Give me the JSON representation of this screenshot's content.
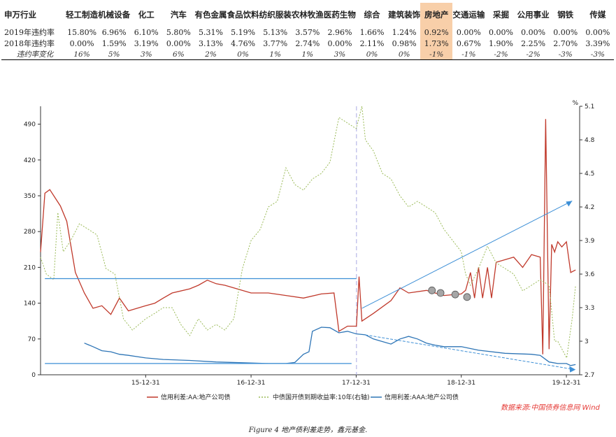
{
  "table": {
    "header_label": "申万行业",
    "industries": [
      "轻工制造",
      "机械设备",
      "化工",
      "汽车",
      "有色金属",
      "食品饮料",
      "纺织服装",
      "农林牧渔",
      "医药生物",
      "综合",
      "建筑装饰",
      "房地产",
      "交通运输",
      "采掘",
      "公用事业",
      "钢铁",
      "传媒"
    ],
    "highlight_industry": "房地产",
    "rows": [
      {
        "label": "2019年违约率",
        "values": [
          "15.80%",
          "6.96%",
          "6.10%",
          "5.80%",
          "5.31%",
          "5.19%",
          "5.13%",
          "3.57%",
          "2.96%",
          "1.66%",
          "1.24%",
          "0.92%",
          "0.00%",
          "0.00%",
          "0.00%",
          "0.00%",
          "0.00%"
        ]
      },
      {
        "label": "2018年违约率",
        "values": [
          "0.00%",
          "1.59%",
          "3.19%",
          "0.00%",
          "3.13%",
          "4.76%",
          "3.77%",
          "2.74%",
          "0.00%",
          "2.11%",
          "0.98%",
          "1.73%",
          "0.67%",
          "1.90%",
          "2.25%",
          "2.70%",
          "3.39%"
        ]
      },
      {
        "label": "违约率变化",
        "values": [
          "16%",
          "5%",
          "3%",
          "6%",
          "2%",
          "0%",
          "1%",
          "1%",
          "3%",
          "0%",
          "0%",
          "-1%",
          "-1%",
          "-2%",
          "-2%",
          "-3%",
          "-3%"
        ]
      }
    ]
  },
  "chart_data": {
    "type": "line",
    "x": [
      "2015-12-31",
      "2016-12-31",
      "2017-12-31",
      "2018-12-31",
      "2019-12-31"
    ],
    "x_ticklabels": [
      "15-12-31",
      "16-12-31",
      "17-12-31",
      "18-12-31",
      "19-12-31"
    ],
    "y_left": {
      "lim": [
        0,
        525
      ],
      "ticks": [
        0,
        70,
        140,
        210,
        280,
        350,
        420,
        490
      ]
    },
    "y_right": {
      "unit": "%",
      "lim": [
        2.7,
        5.1
      ],
      "ticks": [
        2.7,
        3.0,
        3.3,
        3.6,
        3.9,
        4.2,
        4.5,
        4.8,
        5.1
      ]
    },
    "series": [
      {
        "name": "信用利差:AA:地产公司债",
        "axis": "left",
        "color": "#c0392b",
        "style": "solid",
        "points": [
          [
            "2014-12-31",
            240
          ],
          [
            "2015-01-15",
            355
          ],
          [
            "2015-02-01",
            362
          ],
          [
            "2015-03-10",
            330
          ],
          [
            "2015-04-01",
            300
          ],
          [
            "2015-05-01",
            200
          ],
          [
            "2015-06-01",
            160
          ],
          [
            "2015-07-01",
            130
          ],
          [
            "2015-08-01",
            135
          ],
          [
            "2015-09-01",
            118
          ],
          [
            "2015-10-01",
            150
          ],
          [
            "2015-11-01",
            125
          ],
          [
            "2015-12-31",
            135
          ],
          [
            "2016-02-01",
            140
          ],
          [
            "2016-03-01",
            150
          ],
          [
            "2016-04-01",
            160
          ],
          [
            "2016-06-01",
            168
          ],
          [
            "2016-07-01",
            175
          ],
          [
            "2016-08-01",
            185
          ],
          [
            "2016-09-01",
            178
          ],
          [
            "2016-10-01",
            175
          ],
          [
            "2016-11-01",
            170
          ],
          [
            "2016-12-31",
            160
          ],
          [
            "2017-03-01",
            160
          ],
          [
            "2017-05-01",
            155
          ],
          [
            "2017-07-01",
            150
          ],
          [
            "2017-09-01",
            158
          ],
          [
            "2017-10-15",
            160
          ],
          [
            "2017-11-01",
            85
          ],
          [
            "2017-12-01",
            95
          ],
          [
            "2018-01-01",
            95
          ],
          [
            "2018-01-10",
            192
          ],
          [
            "2018-01-20",
            105
          ],
          [
            "2018-03-01",
            120
          ],
          [
            "2018-05-01",
            145
          ],
          [
            "2018-06-01",
            170
          ],
          [
            "2018-07-01",
            160
          ],
          [
            "2018-09-01",
            165
          ],
          [
            "2018-10-01",
            160
          ],
          [
            "2018-11-01",
            155
          ],
          [
            "2018-12-31",
            158
          ],
          [
            "2019-01-15",
            165
          ],
          [
            "2019-02-01",
            200
          ],
          [
            "2019-02-15",
            150
          ],
          [
            "2019-03-01",
            210
          ],
          [
            "2019-03-15",
            150
          ],
          [
            "2019-04-01",
            210
          ],
          [
            "2019-04-15",
            150
          ],
          [
            "2019-05-01",
            220
          ],
          [
            "2019-07-01",
            230
          ],
          [
            "2019-08-01",
            210
          ],
          [
            "2019-09-01",
            235
          ],
          [
            "2019-10-01",
            230
          ],
          [
            "2019-10-10",
            40
          ],
          [
            "2019-10-20",
            500
          ],
          [
            "2019-11-01",
            50
          ],
          [
            "2019-11-10",
            255
          ],
          [
            "2019-11-20",
            240
          ],
          [
            "2019-12-01",
            260
          ],
          [
            "2019-12-15",
            250
          ],
          [
            "2019-12-31",
            260
          ],
          [
            "2020-01-15",
            200
          ],
          [
            "2020-02-01",
            205
          ]
        ]
      },
      {
        "name": "中债国开债到期收益率:10年(右轴)",
        "axis": "right",
        "color": "#9bbb59",
        "style": "dotted",
        "points": [
          [
            "2014-12-31",
            3.75
          ],
          [
            "2015-01-20",
            3.6
          ],
          [
            "2015-02-15",
            3.55
          ],
          [
            "2015-03-01",
            4.15
          ],
          [
            "2015-03-20",
            3.8
          ],
          [
            "2015-04-15",
            3.9
          ],
          [
            "2015-05-15",
            4.05
          ],
          [
            "2015-06-15",
            4.0
          ],
          [
            "2015-07-15",
            3.95
          ],
          [
            "2015-08-15",
            3.65
          ],
          [
            "2015-09-15",
            3.6
          ],
          [
            "2015-10-15",
            3.2
          ],
          [
            "2015-11-15",
            3.1
          ],
          [
            "2015-12-31",
            3.2
          ],
          [
            "2016-02-01",
            3.25
          ],
          [
            "2016-03-01",
            3.3
          ],
          [
            "2016-04-01",
            3.3
          ],
          [
            "2016-05-01",
            3.15
          ],
          [
            "2016-06-01",
            3.05
          ],
          [
            "2016-07-01",
            3.2
          ],
          [
            "2016-08-01",
            3.1
          ],
          [
            "2016-09-01",
            3.15
          ],
          [
            "2016-10-01",
            3.1
          ],
          [
            "2016-11-01",
            3.2
          ],
          [
            "2016-12-01",
            3.65
          ],
          [
            "2016-12-31",
            3.9
          ],
          [
            "2017-02-01",
            4.0
          ],
          [
            "2017-03-01",
            4.2
          ],
          [
            "2017-04-01",
            4.25
          ],
          [
            "2017-05-01",
            4.55
          ],
          [
            "2017-06-01",
            4.4
          ],
          [
            "2017-07-01",
            4.35
          ],
          [
            "2017-08-01",
            4.45
          ],
          [
            "2017-09-01",
            4.5
          ],
          [
            "2017-10-01",
            4.6
          ],
          [
            "2017-11-01",
            5.0
          ],
          [
            "2017-12-01",
            4.95
          ],
          [
            "2017-12-31",
            4.9
          ],
          [
            "2018-01-20",
            5.1
          ],
          [
            "2018-02-01",
            4.8
          ],
          [
            "2018-03-01",
            4.7
          ],
          [
            "2018-04-01",
            4.5
          ],
          [
            "2018-05-01",
            4.45
          ],
          [
            "2018-06-01",
            4.3
          ],
          [
            "2018-07-01",
            4.2
          ],
          [
            "2018-08-01",
            4.25
          ],
          [
            "2018-09-01",
            4.2
          ],
          [
            "2018-10-01",
            4.15
          ],
          [
            "2018-11-01",
            4.0
          ],
          [
            "2018-12-31",
            3.8
          ],
          [
            "2019-01-15",
            3.6
          ],
          [
            "2019-02-01",
            3.5
          ],
          [
            "2019-03-01",
            3.65
          ],
          [
            "2019-04-01",
            3.85
          ],
          [
            "2019-05-01",
            3.7
          ],
          [
            "2019-06-01",
            3.65
          ],
          [
            "2019-07-01",
            3.6
          ],
          [
            "2019-08-01",
            3.45
          ],
          [
            "2019-09-01",
            3.5
          ],
          [
            "2019-10-01",
            3.55
          ],
          [
            "2019-11-01",
            3.5
          ],
          [
            "2019-11-20",
            3.0
          ],
          [
            "2019-12-01",
            3.0
          ],
          [
            "2020-01-01",
            2.85
          ],
          [
            "2020-01-20",
            3.2
          ],
          [
            "2020-02-01",
            3.5
          ]
        ]
      },
      {
        "name": "信用利差:AAA:地产公司债",
        "axis": "left",
        "color": "#2e75b6",
        "style": "solid",
        "points": [
          [
            "2015-06-01",
            62
          ],
          [
            "2015-07-01",
            55
          ],
          [
            "2015-08-01",
            47
          ],
          [
            "2015-09-01",
            45
          ],
          [
            "2015-10-01",
            40
          ],
          [
            "2015-11-01",
            38
          ],
          [
            "2015-12-31",
            33
          ],
          [
            "2016-03-01",
            30
          ],
          [
            "2016-06-01",
            28
          ],
          [
            "2016-09-01",
            25
          ],
          [
            "2016-12-31",
            23
          ],
          [
            "2017-03-01",
            22
          ],
          [
            "2017-05-01",
            22
          ],
          [
            "2017-06-01",
            24
          ],
          [
            "2017-07-01",
            40
          ],
          [
            "2017-07-20",
            45
          ],
          [
            "2017-08-01",
            85
          ],
          [
            "2017-09-01",
            93
          ],
          [
            "2017-10-01",
            92
          ],
          [
            "2017-11-01",
            82
          ],
          [
            "2017-12-01",
            85
          ],
          [
            "2017-12-31",
            80
          ],
          [
            "2018-02-01",
            78
          ],
          [
            "2018-03-01",
            70
          ],
          [
            "2018-04-01",
            65
          ],
          [
            "2018-05-01",
            60
          ],
          [
            "2018-06-01",
            70
          ],
          [
            "2018-07-01",
            75
          ],
          [
            "2018-08-01",
            70
          ],
          [
            "2018-09-01",
            62
          ],
          [
            "2018-10-01",
            58
          ],
          [
            "2018-11-01",
            55
          ],
          [
            "2018-12-31",
            55
          ],
          [
            "2019-03-01",
            48
          ],
          [
            "2019-06-01",
            42
          ],
          [
            "2019-09-01",
            40
          ],
          [
            "2019-10-01",
            38
          ],
          [
            "2019-11-01",
            25
          ],
          [
            "2019-12-01",
            22
          ],
          [
            "2019-12-31",
            22
          ],
          [
            "2020-01-15",
            18
          ],
          [
            "2020-02-01",
            20
          ]
        ]
      }
    ],
    "legend": [
      "信用利差:AA:地产公司债",
      "中债国开债到期收益率:10年(右轴)",
      "信用利差:AAA:地产公司债"
    ],
    "legend_position": "bottom"
  },
  "source_note": "数据来源:中国债券信息网 Wind",
  "caption": "Figure 4 地产债利差走势，鑫元基金.",
  "x_range": [
    "2014-12-31",
    "2020-02-15"
  ]
}
